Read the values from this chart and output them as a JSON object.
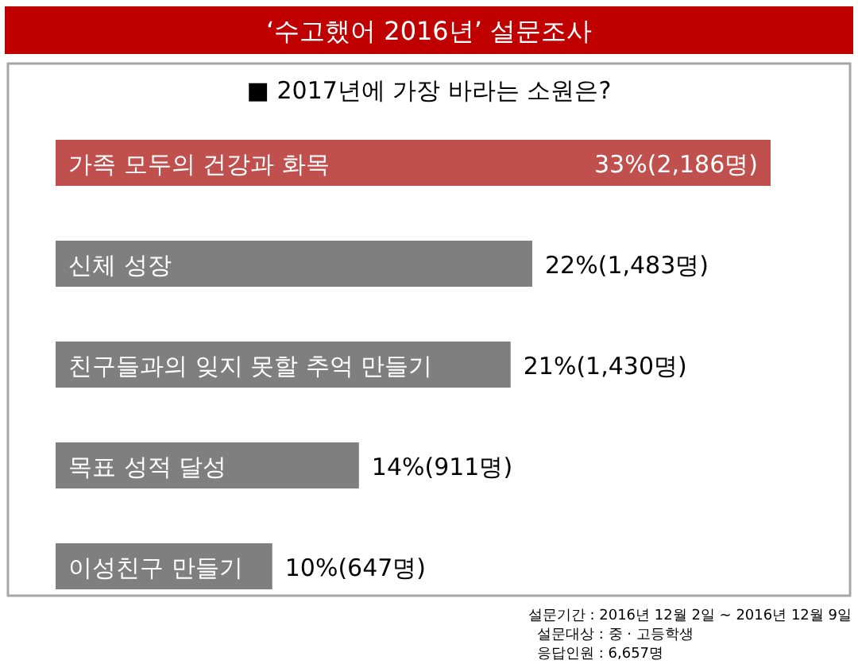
{
  "chart_data": {
    "type": "bar",
    "orientation": "horizontal",
    "title": "‘수고했어 2016년’ 설문조사",
    "subtitle": "■ 2017년에 가장 바라는 소원은?",
    "categories": [
      "가족 모두의 건강과 화목",
      "신체 성장",
      "친구들과의 잊지 못할 추억 만들기",
      "목표 성적 달성",
      "이성친구 만들기"
    ],
    "values": [
      33,
      22,
      21,
      14,
      10
    ],
    "colors": [
      "#c0504d",
      "#7f7f7f",
      "#7f7f7f",
      "#7f7f7f",
      "#7f7f7f"
    ],
    "value_labels": [
      "33%(2,186명)",
      "22%(1,483명)",
      "21%(1,430명)",
      "14%(911명)",
      "10%(647명)"
    ],
    "annotations": [
      "설문기간 : 2016년 12월 2일 ~ 2016년 12월 9일",
      "설문대상 : 중 · 고등학생",
      "응답인원 : 6,657명"
    ]
  }
}
